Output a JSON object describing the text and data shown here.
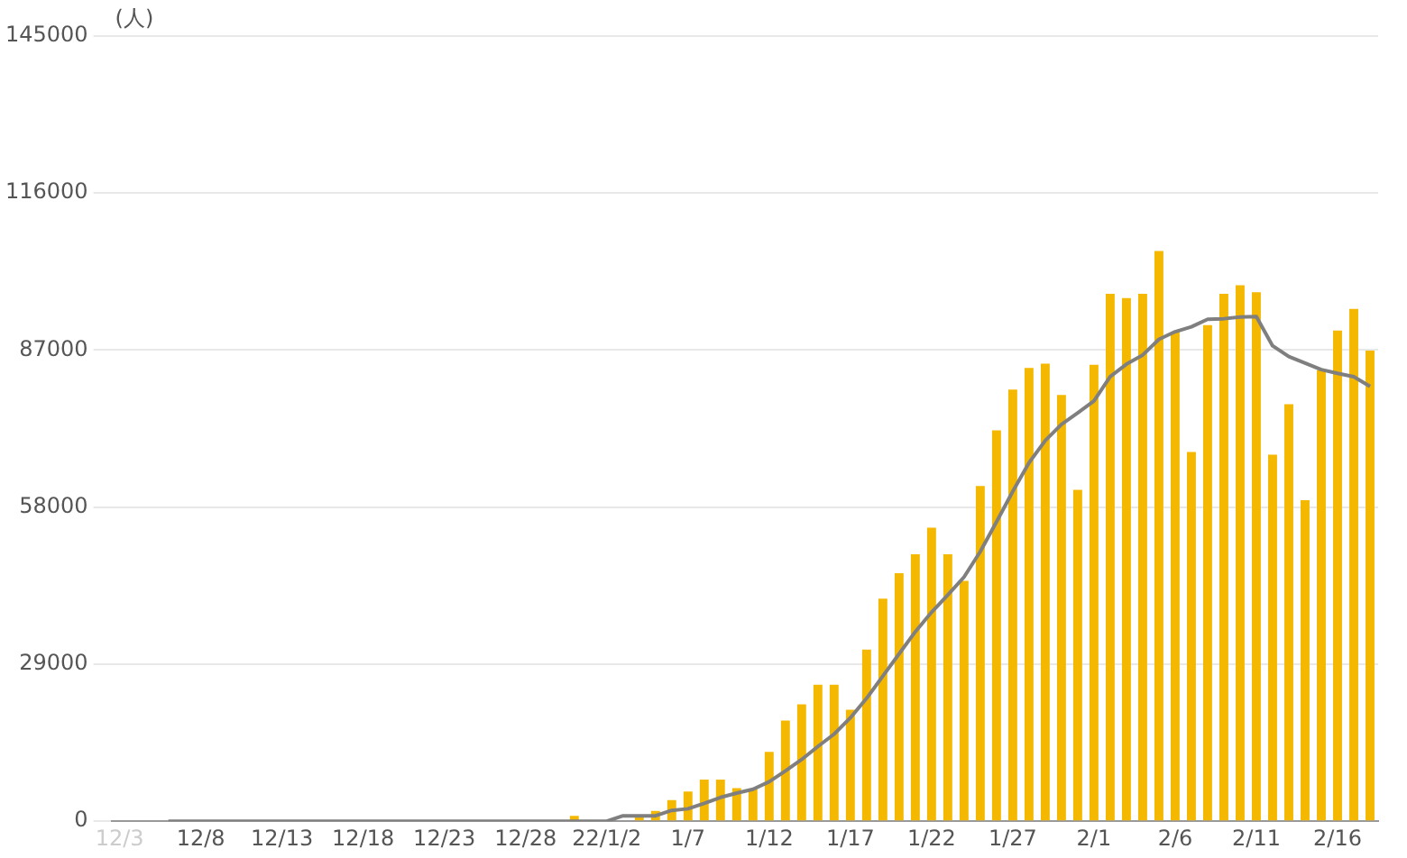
{
  "chart_data": {
    "type": "bar",
    "ylabel": "(人)",
    "categories": [
      "12/3",
      null,
      null,
      null,
      null,
      "12/8",
      null,
      null,
      null,
      null,
      "12/13",
      null,
      null,
      null,
      null,
      "12/18",
      null,
      null,
      null,
      null,
      "12/23",
      null,
      null,
      null,
      null,
      "12/28",
      null,
      null,
      null,
      null,
      "22/1/2",
      null,
      null,
      null,
      null,
      "1/7",
      null,
      null,
      null,
      null,
      "1/12",
      null,
      null,
      null,
      null,
      "1/17",
      null,
      null,
      null,
      null,
      "1/22",
      null,
      null,
      null,
      null,
      "1/27",
      null,
      null,
      null,
      null,
      "2/1",
      null,
      null,
      null,
      null,
      "2/6",
      null,
      null,
      null,
      null,
      "2/11",
      null,
      null,
      null,
      null,
      "2/16",
      null,
      null
    ],
    "series": [
      {
        "color": "#f5b800",
        "values": [
          null,
          null,
          null,
          0,
          0,
          0,
          0,
          0,
          0,
          0,
          0,
          0,
          0,
          0,
          0,
          0,
          0,
          0,
          0,
          0,
          0,
          0,
          0,
          0,
          0,
          0,
          0,
          0,
          1000,
          0,
          0,
          null,
          1000,
          1900,
          3900,
          5500,
          7700,
          7700,
          6100,
          6000,
          12800,
          18600,
          21600,
          25200,
          25200,
          20600,
          31700,
          41100,
          45800,
          49300,
          54200,
          49300,
          44400,
          61900,
          72200,
          79700,
          83700,
          84500,
          78700,
          61200,
          84300,
          97400,
          96600,
          97400,
          105300,
          90400,
          68200,
          91600,
          97400,
          99000,
          97700,
          67700,
          77000,
          59300,
          83300,
          90600,
          94600,
          86900
        ]
      },
      {
        "type": "line",
        "color": "#7f7f7f",
        "values": [
          null,
          null,
          null,
          0,
          0,
          0,
          0,
          0,
          0,
          0,
          0,
          0,
          0,
          0,
          0,
          0,
          0,
          0,
          0,
          0,
          0,
          0,
          0,
          0,
          0,
          0,
          0,
          0,
          0,
          0,
          0,
          1000,
          1000,
          1000,
          2000,
          2300,
          3300,
          4400,
          5200,
          5900,
          7300,
          9300,
          11400,
          13800,
          16100,
          19100,
          22700,
          26800,
          30900,
          35000,
          38600,
          41800,
          45100,
          49800,
          55300,
          60900,
          66200,
          70300,
          73300,
          75400,
          77600,
          82100,
          84400,
          86100,
          89000,
          90400,
          91300,
          92700,
          92800,
          93100,
          93200,
          87800,
          85800,
          84600,
          83400,
          82700,
          82100,
          80300
        ]
      }
    ],
    "ylim": [
      0,
      145000
    ],
    "yticks": [
      0,
      29000,
      58000,
      87000,
      116000,
      145000
    ],
    "grid": "y",
    "marker": "none",
    "line_style": "solid"
  }
}
